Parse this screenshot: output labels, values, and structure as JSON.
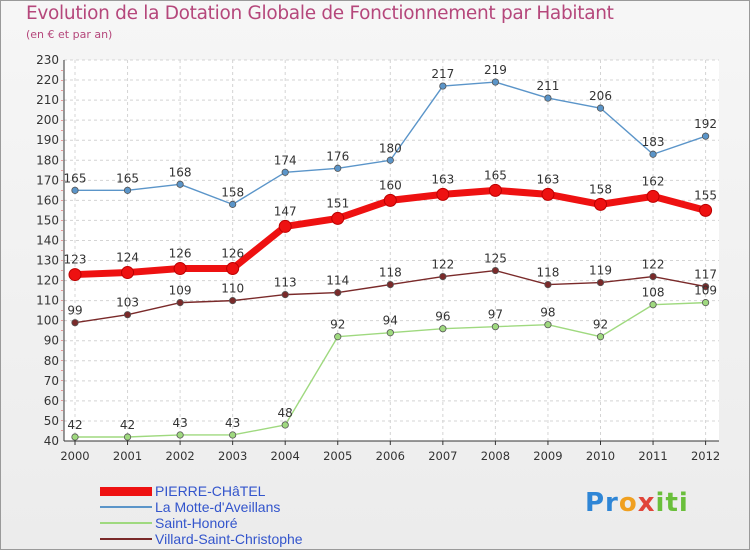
{
  "chart_data": {
    "type": "line",
    "title": "Evolution de la Dotation Globale de Fonctionnement par Habitant",
    "subtitle": "(en € et par an)",
    "xlabel": "",
    "ylabel": "",
    "x": [
      "2000",
      "2001",
      "2002",
      "2003",
      "2004",
      "2005",
      "2006",
      "2007",
      "2008",
      "2009",
      "2010",
      "2011",
      "2012"
    ],
    "ylim": [
      40,
      230
    ],
    "yticks": [
      40,
      50,
      60,
      70,
      80,
      90,
      100,
      110,
      120,
      130,
      140,
      150,
      160,
      170,
      180,
      190,
      200,
      210,
      220,
      230
    ],
    "grid": true,
    "legend_position": "bottom-left",
    "series": [
      {
        "name": "PIERRE-CHâTEL",
        "color": "#ee1111",
        "values": [
          123,
          124,
          126,
          126,
          147,
          151,
          160,
          163,
          165,
          163,
          158,
          162,
          155
        ]
      },
      {
        "name": "La Motte-d'Aveillans",
        "color": "#5b95c9",
        "values": [
          165,
          165,
          168,
          158,
          174,
          176,
          180,
          217,
          219,
          211,
          206,
          183,
          192
        ]
      },
      {
        "name": "Saint-Honoré",
        "color": "#9fd97f",
        "values": [
          42,
          42,
          43,
          43,
          48,
          92,
          94,
          96,
          97,
          98,
          92,
          108,
          109
        ]
      },
      {
        "name": "Villard-Saint-Christophe",
        "color": "#7a2a2a",
        "values": [
          99,
          103,
          109,
          110,
          113,
          114,
          118,
          122,
          125,
          118,
          119,
          122,
          117
        ]
      }
    ]
  },
  "brand": {
    "p1": "Pr",
    "p2": "o",
    "p3": "x",
    "p4": "iti"
  }
}
